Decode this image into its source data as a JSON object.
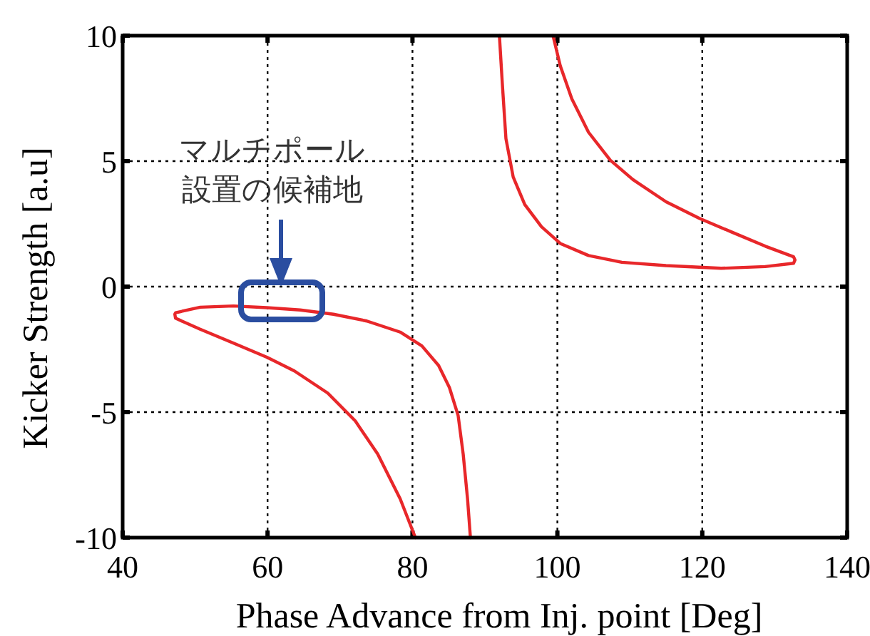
{
  "chart_data": {
    "type": "line",
    "xlabel": "Phase Advance from Inj. point [Deg]",
    "ylabel": "Kicker Strength [a.u]",
    "xlim": [
      40,
      140
    ],
    "xticks": [
      40,
      60,
      80,
      100,
      120,
      140
    ],
    "ylim": [
      -10,
      10
    ],
    "yticks": [
      -10,
      -5,
      0,
      5,
      10
    ],
    "grid": true,
    "line_style": "solid",
    "series": [
      {
        "color": "#e8272a",
        "x": [
          80.4,
          78.3,
          75.2,
          72.1,
          68.3,
          63.7,
          59.9,
          55.3,
          50.7,
          47.3,
          47.2,
          47.3,
          50.7,
          55.3,
          59.9,
          64.5,
          69.1,
          73.7,
          78.3,
          81.3,
          83.6,
          85.1,
          86.3,
          87.0,
          87.6,
          88.0
        ],
        "values": [
          -10,
          -8.45,
          -6.67,
          -5.35,
          -4.24,
          -3.36,
          -2.81,
          -2.25,
          -1.7,
          -1.26,
          -1.1,
          -1.04,
          -0.82,
          -0.77,
          -0.84,
          -0.93,
          -1.1,
          -1.37,
          -1.81,
          -2.36,
          -3.14,
          -4.02,
          -5.13,
          -6.67,
          -8.45,
          -10
        ]
      },
      {
        "color": "#e8272a",
        "x": [
          92.0,
          92.4,
          92.9,
          93.9,
          95.5,
          97.8,
          100.4,
          104.3,
          108.9,
          115.0,
          122.6,
          128.7,
          132.6,
          132.8,
          132.6,
          128.7,
          124.1,
          119.6,
          115.0,
          110.4,
          107.3,
          104.3,
          102.0,
          100.4,
          99.4
        ],
        "values": [
          10,
          8.1,
          5.9,
          4.37,
          3.27,
          2.39,
          1.72,
          1.24,
          0.97,
          0.84,
          0.73,
          0.8,
          0.93,
          1.06,
          1.19,
          1.61,
          2.17,
          2.72,
          3.38,
          4.27,
          5.04,
          6.15,
          7.48,
          8.8,
          10
        ]
      }
    ],
    "annotations": [
      "マルチポール設置の候補地"
    ]
  }
}
